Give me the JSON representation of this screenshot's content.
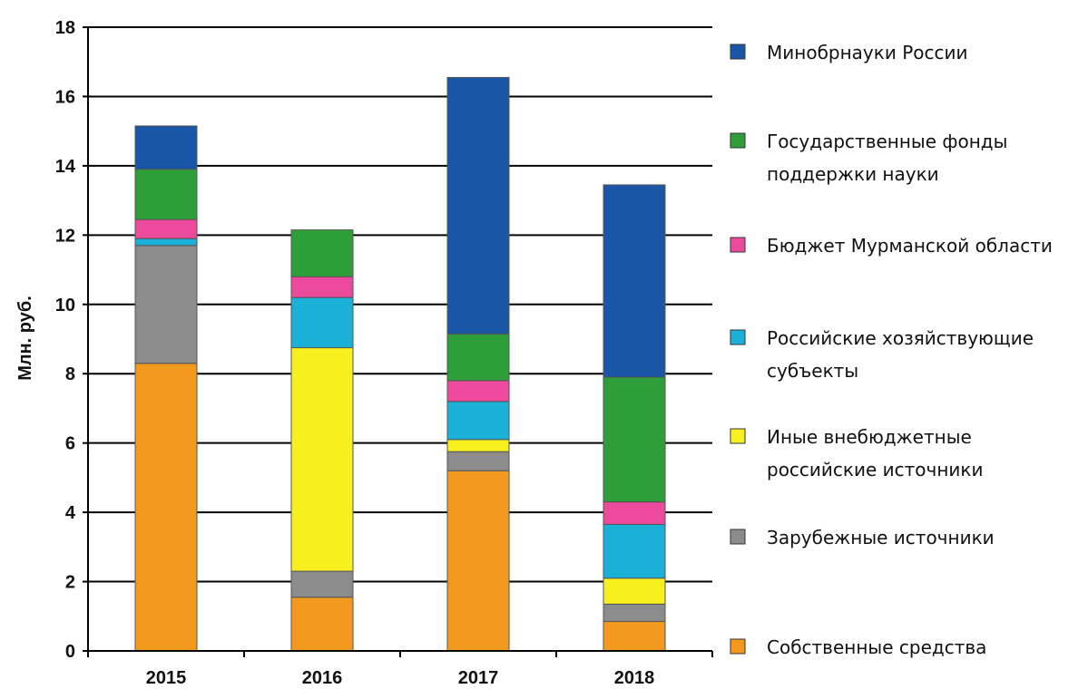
{
  "chart_data": {
    "type": "bar",
    "stacked": true,
    "title": "",
    "xlabel": "",
    "ylabel": "Млн. руб.",
    "ylim": [
      0,
      18
    ],
    "yticks": [
      0,
      2,
      4,
      6,
      8,
      10,
      12,
      14,
      16,
      18
    ],
    "grid": "horizontal",
    "legend_position": "right",
    "categories": [
      "2015",
      "2016",
      "2017",
      "2018"
    ],
    "series": [
      {
        "name": "Собственные средства",
        "color": "#f39a1e",
        "values": [
          8.3,
          1.55,
          5.2,
          0.85
        ]
      },
      {
        "name": "Зарубежные источники",
        "color": "#8c8c8c",
        "values": [
          3.4,
          0.75,
          0.55,
          0.5
        ]
      },
      {
        "name": "Иные внебюджетные российские источники",
        "color": "#f7f01e",
        "values": [
          0.0,
          6.45,
          0.35,
          0.75
        ]
      },
      {
        "name": "Российские хозяйствующие субъекты",
        "color": "#1ab0d8",
        "values": [
          0.2,
          1.45,
          1.1,
          1.55
        ]
      },
      {
        "name": "Бюджет Мурманской области",
        "color": "#ec4a9c",
        "values": [
          0.55,
          0.6,
          0.6,
          0.65
        ]
      },
      {
        "name": "Государственные фонды поддержки науки",
        "color": "#2e9e38",
        "values": [
          1.45,
          1.35,
          1.35,
          3.6
        ]
      },
      {
        "name": "Минобрнауки России",
        "color": "#1a56a8",
        "values": [
          1.25,
          0.0,
          7.4,
          5.55
        ]
      }
    ],
    "legend_order": [
      {
        "lines": [
          "Минобрнауки России"
        ],
        "color": "#1a56a8"
      },
      {
        "lines": [
          "Государственные фонды",
          "поддержки науки"
        ],
        "color": "#2e9e38"
      },
      {
        "lines": [
          "Бюджет Мурманской области"
        ],
        "color": "#ec4a9c"
      },
      {
        "lines": [
          "Российские хозяйствующие",
          "субъекты"
        ],
        "color": "#1ab0d8"
      },
      {
        "lines": [
          "Иные внебюджетные",
          "российские источники"
        ],
        "color": "#f7f01e"
      },
      {
        "lines": [
          "Зарубежные источники"
        ],
        "color": "#8c8c8c"
      },
      {
        "lines": [
          "Собственные средства"
        ],
        "color": "#f39a1e"
      }
    ]
  }
}
